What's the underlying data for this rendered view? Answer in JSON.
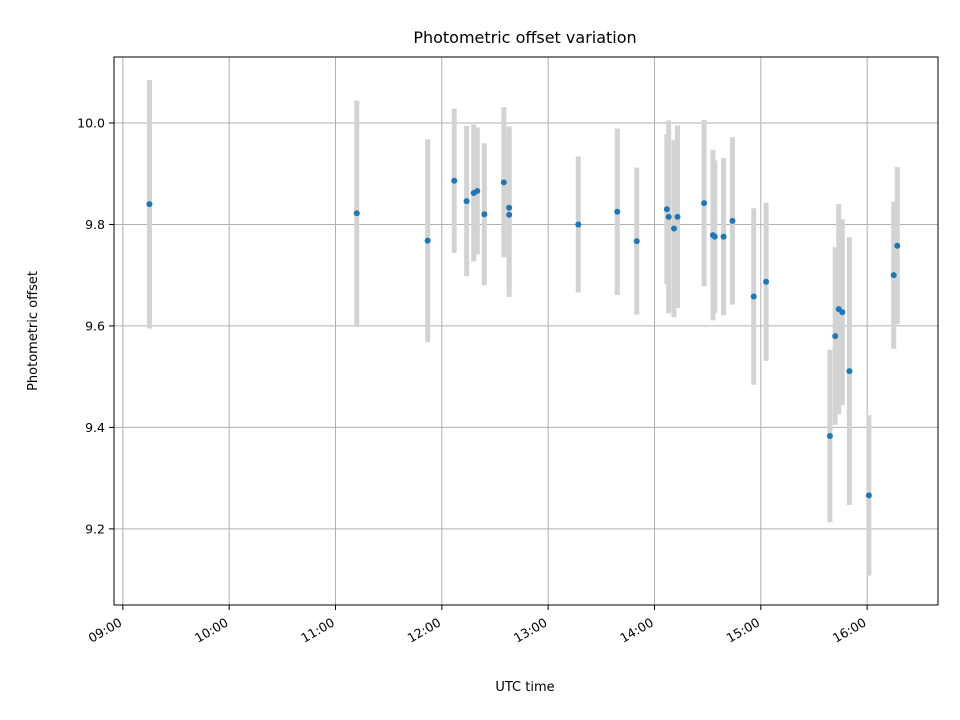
{
  "chart_data": {
    "type": "scatter",
    "title": "Photometric offset variation",
    "xlabel": "UTC time",
    "ylabel": "Photometric offset",
    "x_ticks": [
      "09:00",
      "10:00",
      "11:00",
      "12:00",
      "13:00",
      "14:00",
      "15:00",
      "16:00"
    ],
    "y_ticks": [
      "9.2",
      "9.4",
      "9.6",
      "9.8",
      "10.0"
    ],
    "xlim": [
      "08:55",
      "16:40"
    ],
    "ylim": [
      9.05,
      10.13
    ],
    "grid": true,
    "colors": {
      "marker": "#1f77b4",
      "errorbar": "#d3d3d3",
      "grid": "#b0b0b0"
    },
    "points": [
      {
        "time": "09:15",
        "y": 9.84,
        "err": 0.245
      },
      {
        "time": "11:12",
        "y": 9.822,
        "err": 0.222
      },
      {
        "time": "11:52",
        "y": 9.768,
        "err": 0.2
      },
      {
        "time": "12:07",
        "y": 9.886,
        "err": 0.142
      },
      {
        "time": "12:14",
        "y": 9.846,
        "err": 0.148
      },
      {
        "time": "12:18",
        "y": 9.862,
        "err": 0.135
      },
      {
        "time": "12:20",
        "y": 9.866,
        "err": 0.125
      },
      {
        "time": "12:24",
        "y": 9.82,
        "err": 0.14
      },
      {
        "time": "12:35",
        "y": 9.883,
        "err": 0.148
      },
      {
        "time": "12:38",
        "y": 9.833,
        "err": 0.16
      },
      {
        "time": "12:38",
        "y": 9.819,
        "err": 0.162
      },
      {
        "time": "13:17",
        "y": 9.8,
        "err": 0.134
      },
      {
        "time": "13:39",
        "y": 9.825,
        "err": 0.164
      },
      {
        "time": "13:50",
        "y": 9.767,
        "err": 0.145
      },
      {
        "time": "14:07",
        "y": 9.83,
        "err": 0.148
      },
      {
        "time": "14:08",
        "y": 9.815,
        "err": 0.19
      },
      {
        "time": "14:11",
        "y": 9.792,
        "err": 0.175
      },
      {
        "time": "14:13",
        "y": 9.815,
        "err": 0.18
      },
      {
        "time": "14:28",
        "y": 9.842,
        "err": 0.164
      },
      {
        "time": "14:33",
        "y": 9.779,
        "err": 0.168
      },
      {
        "time": "14:34",
        "y": 9.776,
        "err": 0.15
      },
      {
        "time": "14:39",
        "y": 9.776,
        "err": 0.155
      },
      {
        "time": "14:44",
        "y": 9.807,
        "err": 0.165
      },
      {
        "time": "14:56",
        "y": 9.658,
        "err": 0.174
      },
      {
        "time": "15:03",
        "y": 9.687,
        "err": 0.156
      },
      {
        "time": "15:39",
        "y": 9.383,
        "err": 0.17
      },
      {
        "time": "15:42",
        "y": 9.58,
        "err": 0.175
      },
      {
        "time": "15:44",
        "y": 9.633,
        "err": 0.207
      },
      {
        "time": "15:46",
        "y": 9.627,
        "err": 0.183
      },
      {
        "time": "15:50",
        "y": 9.511,
        "err": 0.264
      },
      {
        "time": "16:01",
        "y": 9.266,
        "err": 0.158
      },
      {
        "time": "16:15",
        "y": 9.7,
        "err": 0.145
      },
      {
        "time": "16:17",
        "y": 9.758,
        "err": 0.155
      }
    ]
  }
}
